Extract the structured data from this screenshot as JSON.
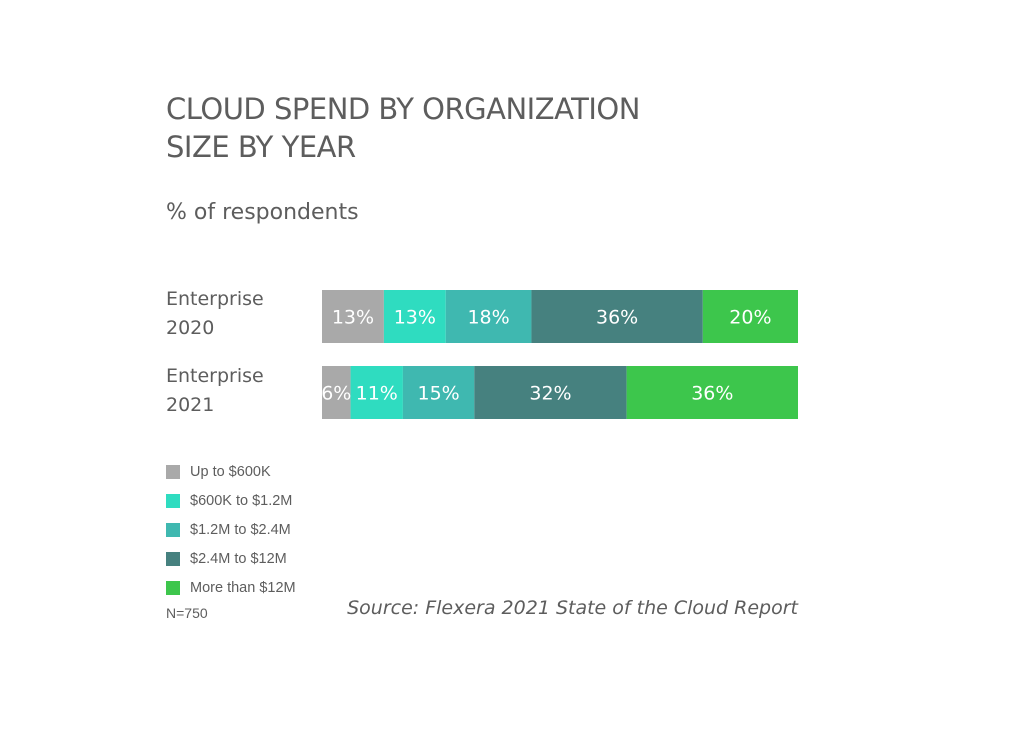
{
  "chart_data": {
    "type": "bar",
    "orientation": "horizontal",
    "stacked": true,
    "title": "CLOUD SPEND BY ORGANIZATION SIZE BY YEAR",
    "title_lines": [
      "CLOUD SPEND BY ORGANIZATION",
      "SIZE BY YEAR"
    ],
    "subtitle": "% of respondents",
    "categories": [
      {
        "line1": "Enterprise",
        "line2": "2020"
      },
      {
        "line1": "Enterprise",
        "line2": "2021"
      }
    ],
    "series": [
      {
        "name": "Up to $600K",
        "color": "#a9a9a9",
        "values": [
          13,
          6
        ]
      },
      {
        "name": "$600K to $1.2M",
        "color": "#2fdcc0",
        "values": [
          13,
          11
        ]
      },
      {
        "name": "$1.2M to $2.4M",
        "color": "#3fb8b0",
        "values": [
          18,
          15
        ]
      },
      {
        "name": "$2.4M to $12M",
        "color": "#46817f",
        "values": [
          36,
          32
        ]
      },
      {
        "name": "More than $12M",
        "color": "#3dc64c",
        "values": [
          20,
          36
        ]
      }
    ],
    "data_labels": [
      [
        "13%",
        "13%",
        "18%",
        "36%",
        "20%"
      ],
      [
        "6%",
        "11%",
        "15%",
        "32%",
        "36%"
      ]
    ],
    "xlim": [
      0,
      100
    ],
    "legend_position": "bottom-left",
    "grid": false
  },
  "footer": {
    "note": "N=750",
    "source": "Source: Flexera 2021 State of the Cloud Report"
  }
}
